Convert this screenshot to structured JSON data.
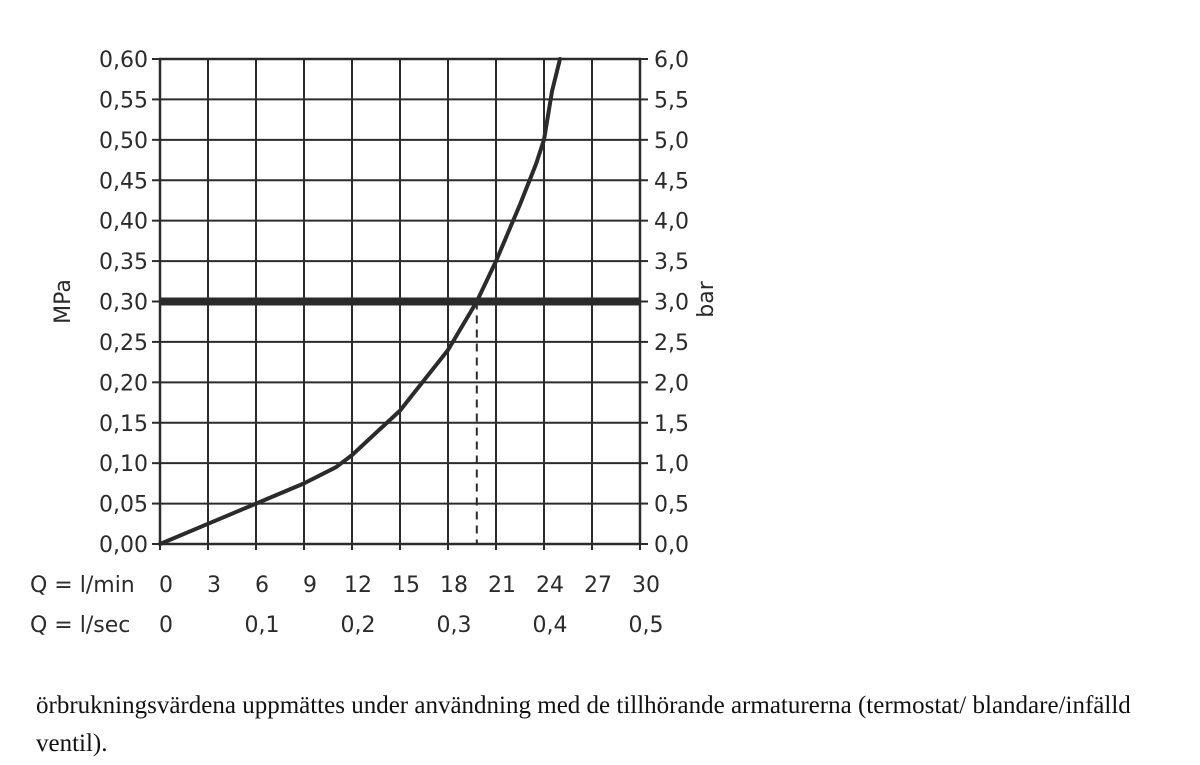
{
  "chart_data": {
    "type": "line",
    "left_axis": {
      "label": "MPa",
      "ticks": [
        "0,00",
        "0,05",
        "0,10",
        "0,15",
        "0,20",
        "0,25",
        "0,30",
        "0,35",
        "0,40",
        "0,45",
        "0,50",
        "0,55",
        "0,60"
      ],
      "range": [
        0,
        0.6
      ]
    },
    "right_axis": {
      "label": "bar",
      "ticks": [
        "0,0",
        "0,5",
        "1,0",
        "1,5",
        "2,0",
        "2,5",
        "3,0",
        "3,5",
        "4,0",
        "4,5",
        "5,0",
        "5,5",
        "6,0"
      ],
      "range": [
        0,
        6
      ]
    },
    "x_axis_lmin": {
      "label": "Q = l/min",
      "ticks": [
        "0",
        "3",
        "6",
        "9",
        "12",
        "15",
        "18",
        "21",
        "24",
        "27",
        "30"
      ],
      "range": [
        0,
        30
      ]
    },
    "x_axis_lsec": {
      "label": "Q = l/sec",
      "ticks": [
        "0",
        "0,1",
        "0,2",
        "0,3",
        "0,4",
        "0,5"
      ],
      "tick_values": [
        0,
        6,
        12,
        18,
        24,
        30
      ]
    },
    "grid": true,
    "series": [
      {
        "points": [
          [
            0,
            0.0
          ],
          [
            3,
            0.025
          ],
          [
            6,
            0.05
          ],
          [
            9,
            0.075
          ],
          [
            11,
            0.095
          ],
          [
            12,
            0.11
          ],
          [
            15,
            0.165
          ],
          [
            18,
            0.24
          ],
          [
            19.8,
            0.3
          ],
          [
            21,
            0.35
          ],
          [
            22.5,
            0.42
          ],
          [
            23.5,
            0.47
          ],
          [
            24,
            0.5
          ],
          [
            24.5,
            0.56
          ],
          [
            25,
            0.6
          ]
        ]
      }
    ],
    "reference_line_y": 0.3,
    "marker_x": 19.8
  },
  "caption": "örbrukningsvärdena uppmättes under användning med de tillhörande armaturerna (termostat/ blandare/infälld ventil)."
}
